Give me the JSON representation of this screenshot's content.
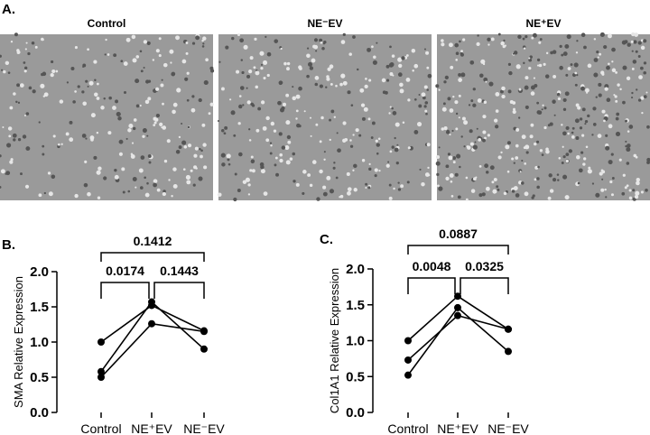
{
  "panel_a": {
    "label": "A.",
    "images": [
      {
        "title": "Control"
      },
      {
        "title": "NE⁻EV"
      },
      {
        "title": "NE⁺EV"
      }
    ]
  },
  "chart_data": [
    {
      "panel_label": "B.",
      "type": "line",
      "ylabel": "SMA Relative Expression",
      "categories": [
        "Control",
        "NE⁺EV",
        "NE⁻EV"
      ],
      "ylim": [
        0,
        2.0
      ],
      "yticks": [
        "0.0",
        "0.5",
        "1.0",
        "1.5",
        "2.0"
      ],
      "series": [
        {
          "values": [
            1.0,
            1.52,
            1.16
          ]
        },
        {
          "values": [
            0.58,
            1.57,
            0.9
          ]
        },
        {
          "values": [
            0.5,
            1.26,
            1.15
          ]
        }
      ],
      "comparisons": [
        {
          "from": "Control",
          "to": "NE⁻EV",
          "p": "0.1412"
        },
        {
          "from": "Control",
          "to": "NE⁺EV",
          "p": "0.0174"
        },
        {
          "from": "NE⁺EV",
          "to": "NE⁻EV",
          "p": "0.1443"
        }
      ]
    },
    {
      "panel_label": "C.",
      "type": "line",
      "ylabel": "Col1A1 Relative Expression",
      "categories": [
        "Control",
        "NE⁺EV",
        "NE⁻EV"
      ],
      "ylim": [
        0,
        2.0
      ],
      "yticks": [
        "0.0",
        "0.5",
        "1.0",
        "1.5",
        "2.0"
      ],
      "series": [
        {
          "values": [
            1.0,
            1.62,
            1.16
          ]
        },
        {
          "values": [
            0.73,
            1.35,
            1.16
          ]
        },
        {
          "values": [
            0.52,
            1.46,
            0.85
          ]
        }
      ],
      "comparisons": [
        {
          "from": "Control",
          "to": "NE⁻EV",
          "p": "0.0887"
        },
        {
          "from": "Control",
          "to": "NE⁺EV",
          "p": "0.0048"
        },
        {
          "from": "NE⁺EV",
          "to": "NE⁻EV",
          "p": "0.0325"
        }
      ]
    }
  ]
}
